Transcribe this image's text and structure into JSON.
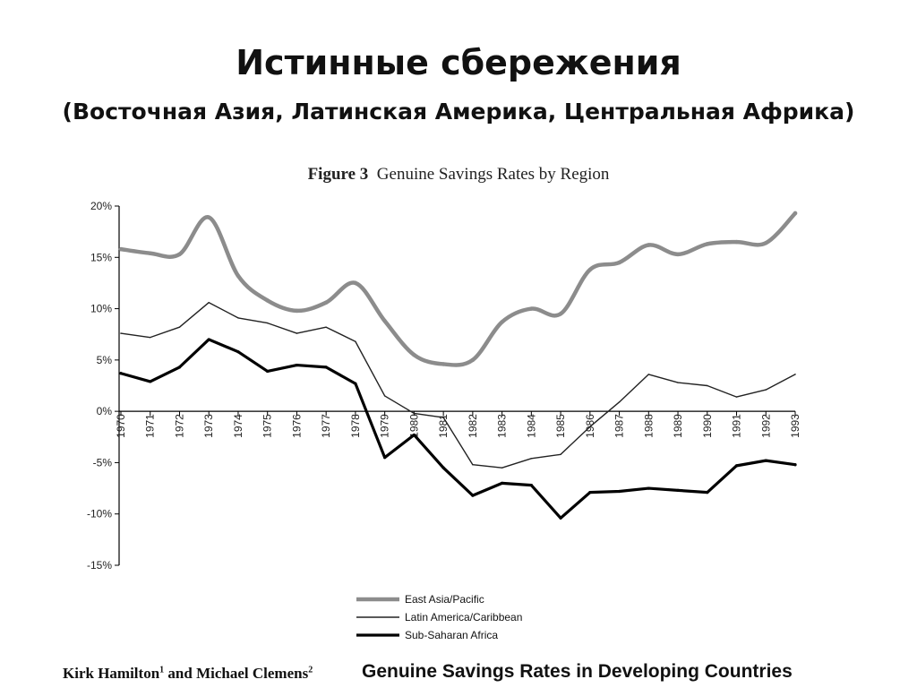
{
  "slide": {
    "title": "Истинные сбережения",
    "subtitle": "(Восточная Азия, Латинская Америка, Центральная Африка)"
  },
  "figure": {
    "label": "Figure 3",
    "caption": "Genuine Savings Rates by Region"
  },
  "footer": {
    "author1": "Kirk Hamilton",
    "author1_sup": "1",
    "and": " and ",
    "author2": "Michael Clemens",
    "author2_sup": "2",
    "paper_title": "Genuine Savings Rates in Developing Countries"
  },
  "chart_data": {
    "type": "line",
    "title": "Genuine Savings Rates by Region",
    "xlabel": "",
    "ylabel": "",
    "x": [
      "1970",
      "1971",
      "1972",
      "1973",
      "1974",
      "1975",
      "1976",
      "1977",
      "1978",
      "1979",
      "1980",
      "1981",
      "1982",
      "1983",
      "1984",
      "1985",
      "1986",
      "1987",
      "1988",
      "1989",
      "1990",
      "1991",
      "1992",
      "1993"
    ],
    "yticks": [
      20,
      15,
      10,
      5,
      0,
      -5,
      -10,
      -15
    ],
    "ytick_labels": [
      "20%",
      "15%",
      "10%",
      "5%",
      "0%",
      "-5%",
      "-10%",
      "-15%"
    ],
    "ylim": [
      -15,
      20
    ],
    "grid": false,
    "legend_position": "bottom-center",
    "series": [
      {
        "name": "East Asia/Pacific",
        "color": "#8c8c8c",
        "style": "thick-smooth",
        "values": [
          15.8,
          15.4,
          15.3,
          18.9,
          13.2,
          10.8,
          9.8,
          10.6,
          12.5,
          8.8,
          5.5,
          4.6,
          5.0,
          8.7,
          10.0,
          9.5,
          13.8,
          14.5,
          16.2,
          15.3,
          16.3,
          16.5,
          16.4,
          19.3
        ]
      },
      {
        "name": "Latin America/Caribbean",
        "color": "#222222",
        "style": "thin",
        "values": [
          7.6,
          7.2,
          8.2,
          10.6,
          9.1,
          8.6,
          7.6,
          8.2,
          6.8,
          1.5,
          -0.2,
          -0.6,
          -5.2,
          -5.5,
          -4.6,
          -4.2,
          -1.5,
          0.9,
          3.6,
          2.8,
          2.5,
          1.4,
          2.1,
          3.6
        ]
      },
      {
        "name": "Sub-Saharan Africa",
        "color": "#000000",
        "style": "thick",
        "values": [
          3.7,
          2.9,
          4.3,
          7.0,
          5.8,
          3.9,
          4.5,
          4.3,
          2.7,
          -4.5,
          -2.3,
          -5.5,
          -8.2,
          -7.0,
          -7.2,
          -10.4,
          -7.9,
          -7.8,
          -7.5,
          -7.7,
          -7.9,
          -5.3,
          -4.8,
          -5.2
        ]
      }
    ]
  }
}
